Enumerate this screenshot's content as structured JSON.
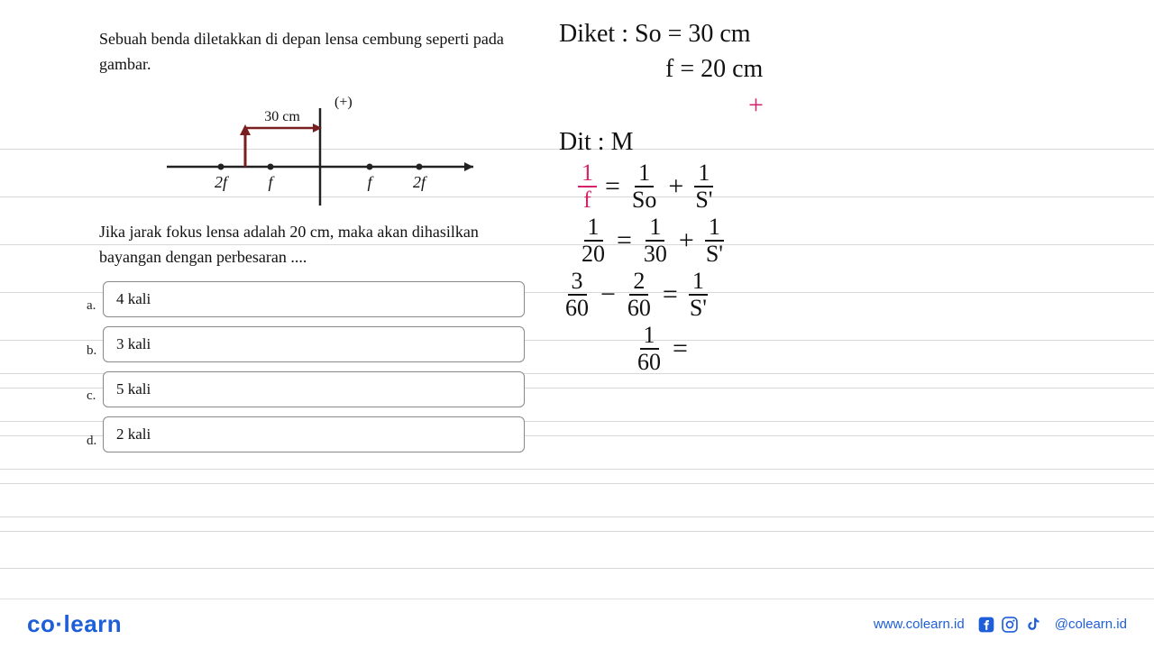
{
  "question": {
    "intro": "Sebuah benda diletakkan di depan lensa cembung seperti pada gambar.",
    "followup": "Jika jarak fokus lensa adalah 20 cm, maka akan dihasilkan bayangan dengan perbesaran ....",
    "diagram": {
      "distance_label": "30 cm",
      "plus_label": "(+)",
      "axis_labels_left": [
        "2f",
        "f"
      ],
      "axis_labels_right": [
        "f",
        "2f"
      ],
      "line_color": "#222222",
      "arrow_color": "#7a1f1f",
      "object_color": "#7a1f1f"
    },
    "options": [
      {
        "letter": "a.",
        "text": "4 kali"
      },
      {
        "letter": "b.",
        "text": "3 kali"
      },
      {
        "letter": "c.",
        "text": "5 kali"
      },
      {
        "letter": "d.",
        "text": "2 kali"
      }
    ]
  },
  "handwriting": {
    "diket_label": "Diket :",
    "so": "So = 30 cm",
    "f": "f = 20 cm",
    "plus": "+",
    "dit_label": "Dit :",
    "dit_value": "M",
    "formula_parts": {
      "one_f": {
        "num": "1",
        "den": "f"
      },
      "one_so": {
        "num": "1",
        "den": "So"
      },
      "one_si": {
        "num": "1",
        "den": "S'"
      },
      "one_20": {
        "num": "1",
        "den": "20"
      },
      "one_30": {
        "num": "1",
        "den": "30"
      },
      "three_60": {
        "num": "3",
        "den": "60"
      },
      "two_60": {
        "num": "2",
        "den": "60"
      },
      "one_60": {
        "num": "1",
        "den": "60"
      }
    },
    "colors": {
      "red": "#d6226a",
      "black": "#111111"
    }
  },
  "footer": {
    "logo_left": "co",
    "logo_dot": "·",
    "logo_right": "learn",
    "url": "www.colearn.id",
    "handle": "@colearn.id",
    "brand_color": "#1e5fd9"
  },
  "ruled_line_positions": [
    165,
    218,
    271,
    324,
    377,
    414,
    430,
    467,
    483,
    520,
    536,
    573,
    589,
    630
  ]
}
